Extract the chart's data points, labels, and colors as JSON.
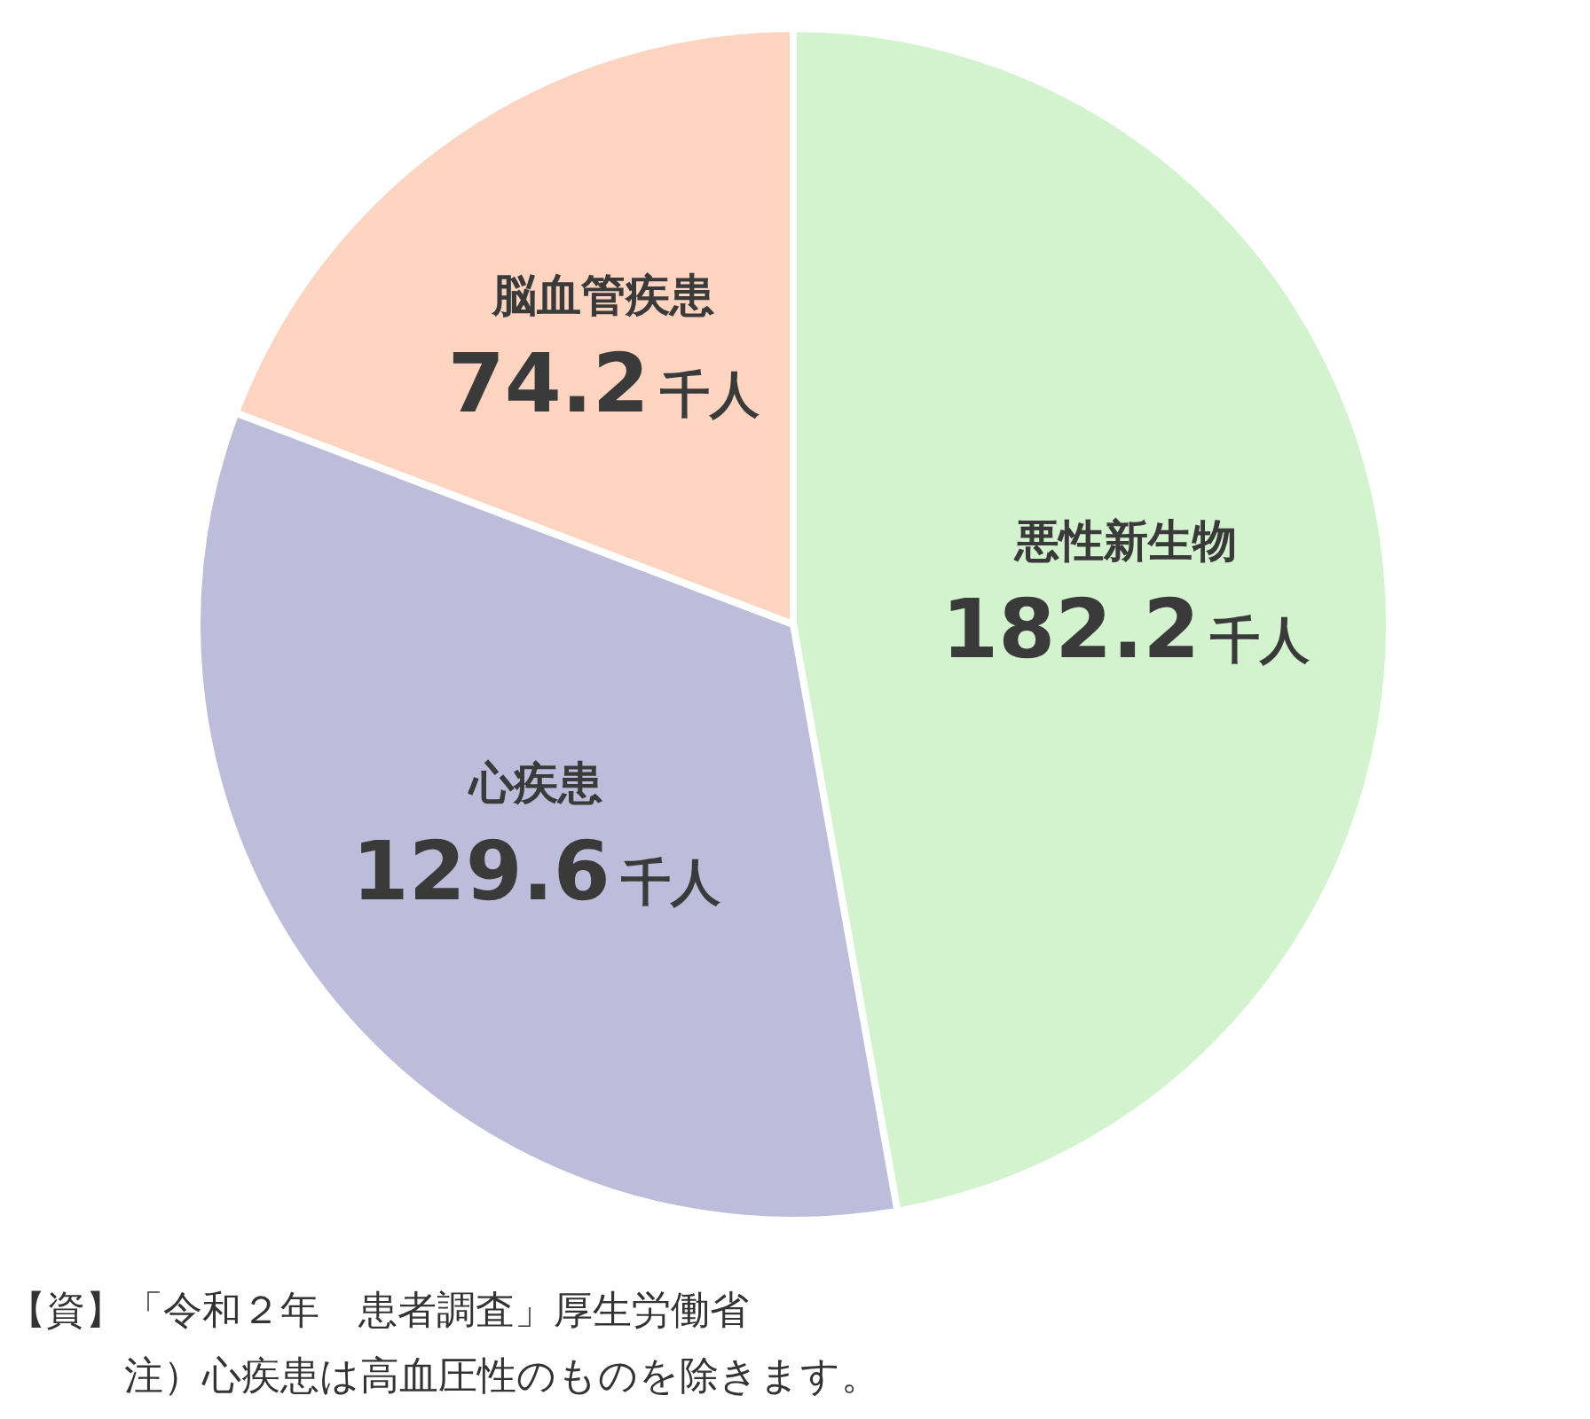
{
  "chart_data": {
    "type": "pie",
    "categories": [
      "悪性新生物",
      "心疾患",
      "脳血管疾患"
    ],
    "values": [
      182.2,
      129.6,
      74.2
    ],
    "colors": [
      "#d3f2ce",
      "#bdbcdb",
      "#fdd4bf"
    ],
    "value_labels": [
      "182.2千人",
      "129.6千人",
      "74.2千人"
    ],
    "annotations": [
      "【資】「令和２年　患者調査」厚生労働省",
      "　　　注）心疾患は高血圧性のものを除きます。"
    ]
  }
}
